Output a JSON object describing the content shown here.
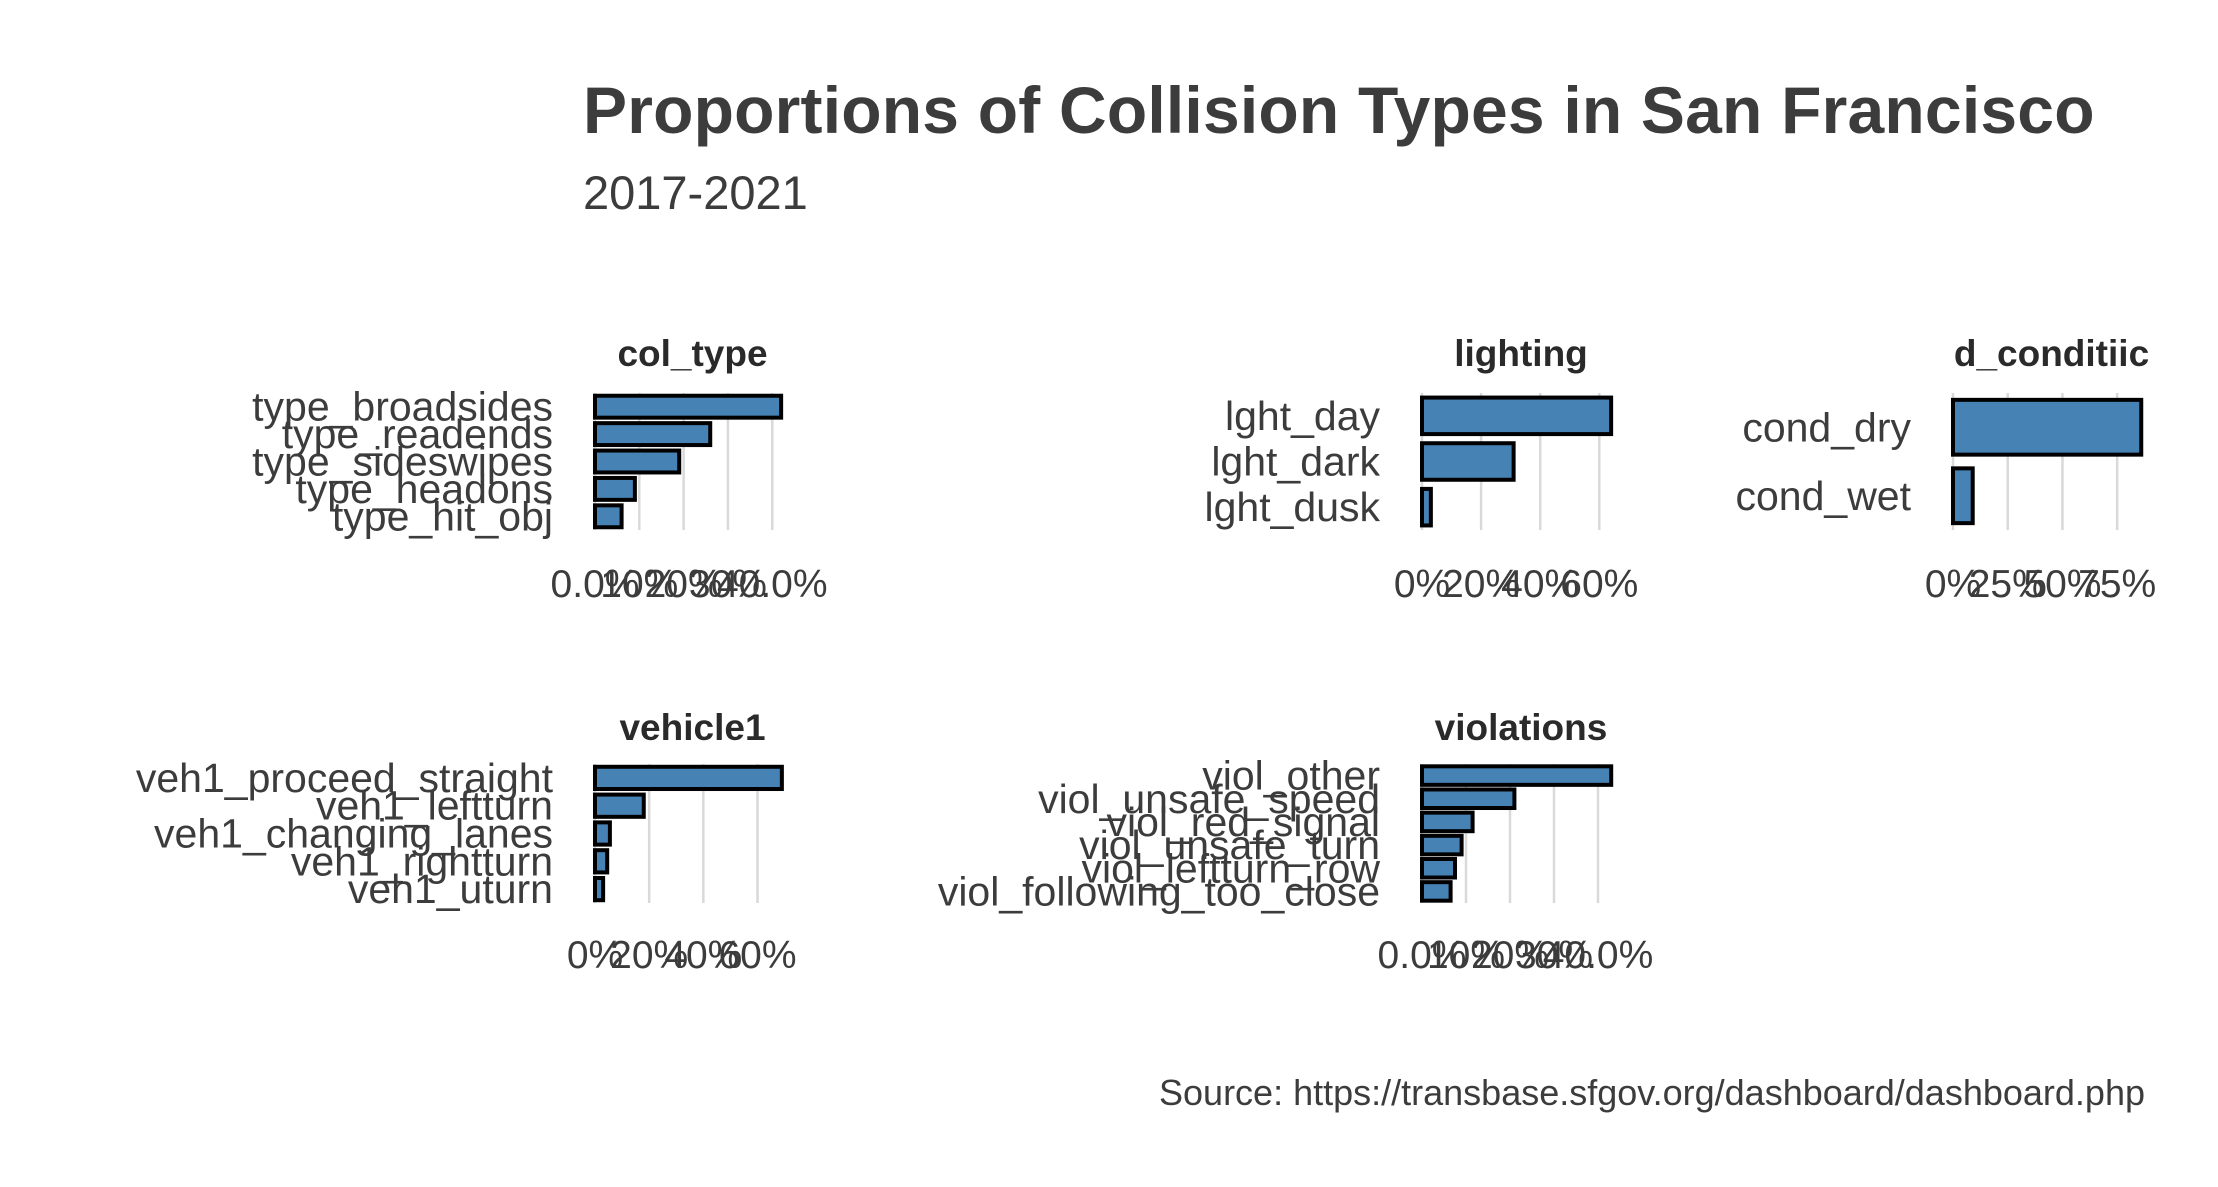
{
  "title": "Proportions of Collision Types in San Francisco",
  "subtitle": "2017-2021",
  "caption": "Source: https://transbase.sfgov.org/dashboard/dashboard.php",
  "colors": {
    "bar_fill": "#4682b4",
    "bar_stroke": "#000000",
    "grid": "#d9d9d9",
    "text": "#3c3c3c"
  },
  "chart_data": [
    {
      "type": "bar",
      "orientation": "horizontal",
      "title": "col_type",
      "categories": [
        "type_broadsides",
        "type_readends",
        "type_sideswipes",
        "type_headons",
        "type_hit_obj"
      ],
      "values": [
        0.42,
        0.26,
        0.19,
        0.09,
        0.06
      ],
      "xticks": [
        0,
        0.1,
        0.2,
        0.3,
        0.4
      ],
      "xtick_labels": [
        "0.0%",
        "10%",
        "20%",
        "30%",
        "40.0%"
      ],
      "xlim": [
        0,
        0.44
      ]
    },
    {
      "type": "bar",
      "orientation": "horizontal",
      "title": "lighting",
      "categories": [
        "lght_day",
        "lght_dark",
        "lght_dusk"
      ],
      "values": [
        0.64,
        0.31,
        0.03
      ],
      "xticks": [
        0,
        0.2,
        0.4,
        0.6
      ],
      "xtick_labels": [
        "0%",
        "20%",
        "40%",
        "60%"
      ],
      "xlim": [
        0,
        0.67
      ]
    },
    {
      "type": "bar",
      "orientation": "horizontal",
      "title": "d_conditiic",
      "categories": [
        "cond_dry",
        "cond_wet"
      ],
      "values": [
        0.86,
        0.09
      ],
      "xticks": [
        0,
        0.25,
        0.5,
        0.75
      ],
      "xtick_labels": [
        "0%",
        "25%",
        "50%",
        "75%"
      ],
      "xlim": [
        0,
        0.9
      ]
    },
    {
      "type": "bar",
      "orientation": "horizontal",
      "title": "vehicle1",
      "categories": [
        "veh1_proceed_straight",
        "veh1_leftturn",
        "veh1_changing_lanes",
        "veh1_rightturn",
        "veh1_uturn"
      ],
      "values": [
        0.69,
        0.18,
        0.055,
        0.045,
        0.03
      ],
      "xticks": [
        0,
        0.2,
        0.4,
        0.6
      ],
      "xtick_labels": [
        "0%",
        "20%",
        "40%",
        "60%"
      ],
      "xlim": [
        0,
        0.72
      ]
    },
    {
      "type": "bar",
      "orientation": "horizontal",
      "title": "violations",
      "categories": [
        "viol_other",
        "viol_unsafe_speed",
        "viol_red_signal",
        "viol_unsafe_turn",
        "viol_leftturn_row",
        "viol_following_too_close"
      ],
      "values": [
        0.43,
        0.21,
        0.115,
        0.09,
        0.075,
        0.065
      ],
      "xticks": [
        0,
        0.1,
        0.2,
        0.3,
        0.4
      ],
      "xtick_labels": [
        "0.0%",
        "10%",
        "20%",
        "30%",
        "40.0%"
      ],
      "xlim": [
        0,
        0.45
      ]
    }
  ]
}
